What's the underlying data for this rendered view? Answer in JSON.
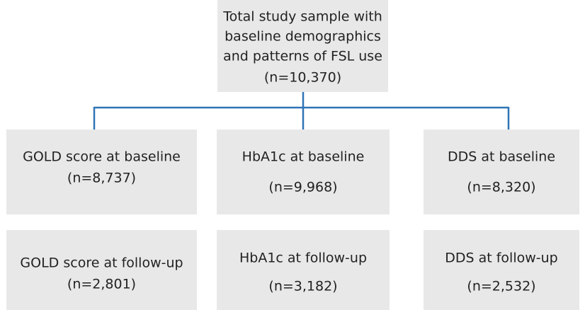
{
  "nodes": [
    {
      "lines": [
        "Total study sample with",
        "baseline demographics",
        "and patterns of FSL use"
      ],
      "n": "(n=10,370)"
    },
    {
      "lines": [
        "GOLD score at baseline"
      ],
      "n": "(n=8,737)"
    },
    {
      "lines": [
        "HbA1c at baseline"
      ],
      "n": "(n=9,968)"
    },
    {
      "lines": [
        "DDS at baseline"
      ],
      "n": "(n=8,320)"
    },
    {
      "lines": [
        "GOLD score at follow-up"
      ],
      "n": "(n=2,801)"
    },
    {
      "lines": [
        "HbA1c at follow-up"
      ],
      "n": "(n=3,182)"
    },
    {
      "lines": [
        "DDS at follow-up"
      ],
      "n": "(n=2,532)"
    }
  ]
}
